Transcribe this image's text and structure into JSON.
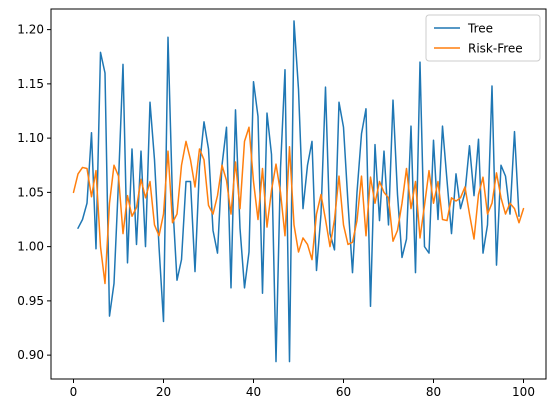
{
  "chart_data": {
    "type": "line",
    "title": "",
    "xlabel": "",
    "ylabel": "",
    "xlim": [
      -5,
      105
    ],
    "ylim": [
      0.878,
      1.219
    ],
    "x_ticks": [
      0,
      20,
      40,
      60,
      80,
      100
    ],
    "y_ticks": [
      0.9,
      0.95,
      1.0,
      1.05,
      1.1,
      1.15,
      1.2
    ],
    "grid": false,
    "legend": {
      "position": "top-right",
      "entries": [
        {
          "label": "Tree",
          "color": "#1f77b4"
        },
        {
          "label": "Risk-Free",
          "color": "#ff7f0e"
        }
      ]
    },
    "series": [
      {
        "name": "Tree",
        "color": "#1f77b4",
        "x_start": 1,
        "values": [
          1.017,
          1.025,
          1.04,
          1.105,
          0.998,
          1.179,
          1.16,
          0.936,
          0.966,
          1.06,
          1.168,
          0.985,
          1.09,
          1.002,
          1.088,
          1.0,
          1.133,
          1.08,
          1.0,
          0.931,
          1.193,
          1.043,
          0.969,
          0.988,
          1.06,
          1.06,
          0.977,
          1.074,
          1.115,
          1.09,
          1.015,
          0.994,
          1.075,
          1.11,
          0.962,
          1.126,
          1.017,
          0.962,
          0.995,
          1.152,
          1.12,
          0.957,
          1.123,
          1.085,
          0.894,
          1.072,
          1.163,
          0.894,
          1.208,
          1.145,
          1.035,
          1.075,
          1.097,
          0.978,
          1.03,
          1.147,
          1.012,
          0.997,
          1.133,
          1.11,
          1.04,
          0.976,
          1.05,
          1.104,
          1.127,
          0.945,
          1.094,
          1.024,
          1.088,
          1.02,
          1.135,
          1.048,
          0.99,
          1.007,
          1.111,
          0.976,
          1.17,
          1.0,
          0.994,
          1.098,
          1.025,
          1.111,
          1.061,
          1.012,
          1.067,
          1.035,
          1.05,
          1.093,
          1.047,
          1.099,
          0.994,
          1.02,
          1.148,
          0.983,
          1.075,
          1.065,
          1.03,
          1.106,
          1.028
        ]
      },
      {
        "name": "Risk-Free",
        "color": "#ff7f0e",
        "x_start": 0,
        "values": [
          1.05,
          1.067,
          1.073,
          1.072,
          1.046,
          1.07,
          1.0,
          0.966,
          1.04,
          1.075,
          1.065,
          1.012,
          1.047,
          1.028,
          1.036,
          1.062,
          1.045,
          1.06,
          1.02,
          1.01,
          1.03,
          1.088,
          1.022,
          1.03,
          1.075,
          1.097,
          1.08,
          1.055,
          1.09,
          1.08,
          1.038,
          1.03,
          1.047,
          1.075,
          1.061,
          1.03,
          1.078,
          1.035,
          1.097,
          1.11,
          1.06,
          1.025,
          1.072,
          1.018,
          1.052,
          1.076,
          1.05,
          1.01,
          1.092,
          1.02,
          0.995,
          1.008,
          1.002,
          0.988,
          1.03,
          1.048,
          1.025,
          1.0,
          1.025,
          1.065,
          1.02,
          1.002,
          1.004,
          1.024,
          1.065,
          1.01,
          1.064,
          1.04,
          1.06,
          1.05,
          1.045,
          1.005,
          1.015,
          1.04,
          1.072,
          1.035,
          1.06,
          1.008,
          1.038,
          1.07,
          1.04,
          1.06,
          1.025,
          1.024,
          1.045,
          1.042,
          1.045,
          1.055,
          1.03,
          1.007,
          1.048,
          1.064,
          1.03,
          1.04,
          1.068,
          1.045,
          1.03,
          1.04,
          1.035,
          1.022,
          1.035
        ]
      }
    ]
  }
}
